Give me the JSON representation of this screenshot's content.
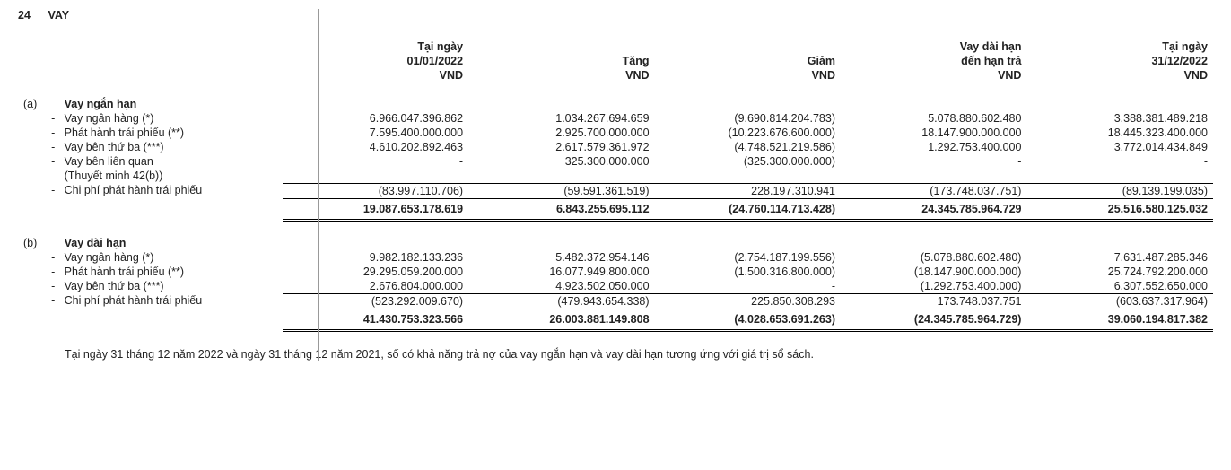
{
  "note_number": "24",
  "note_title": "VAY",
  "columns": {
    "c1_l1": "Tại ngày",
    "c1_l2": "01/01/2022",
    "c1_l3": "VND",
    "c2_l1": "Tăng",
    "c2_l2": "VND",
    "c3_l1": "Giảm",
    "c3_l2": "VND",
    "c4_l1": "Vay dài hạn",
    "c4_l2": "đến hạn trả",
    "c4_l3": "VND",
    "c5_l1": "Tại ngày",
    "c5_l2": "31/12/2022",
    "c5_l3": "VND"
  },
  "section_a": {
    "marker": "(a)",
    "title": "Vay ngắn hạn",
    "rows": [
      {
        "label": "Vay ngân hàng (*)",
        "c1": "6.966.047.396.862",
        "c2": "1.034.267.694.659",
        "c3": "(9.690.814.204.783)",
        "c4": "5.078.880.602.480",
        "c5": "3.388.381.489.218"
      },
      {
        "label": "Phát hành trái phiếu (**)",
        "c1": "7.595.400.000.000",
        "c2": "2.925.700.000.000",
        "c3": "(10.223.676.600.000)",
        "c4": "18.147.900.000.000",
        "c5": "18.445.323.400.000"
      },
      {
        "label": "Vay bên thứ ba (***)",
        "c1": "4.610.202.892.463",
        "c2": "2.617.579.361.972",
        "c3": "(4.748.521.219.586)",
        "c4": "1.292.753.400.000",
        "c5": "3.772.014.434.849"
      },
      {
        "label": "Vay bên liên quan",
        "label2": "(Thuyết minh 42(b))",
        "c1": "-",
        "c2": "325.300.000.000",
        "c3": "(325.300.000.000)",
        "c4": "-",
        "c5": "-"
      },
      {
        "label": "Chi phí phát hành trái phiếu",
        "c1": "(83.997.110.706)",
        "c2": "(59.591.361.519)",
        "c3": "228.197.310.941",
        "c4": "(173.748.037.751)",
        "c5": "(89.139.199.035)"
      }
    ],
    "subtotal": {
      "c1": "19.087.653.178.619",
      "c2": "6.843.255.695.112",
      "c3": "(24.760.114.713.428)",
      "c4": "24.345.785.964.729",
      "c5": "25.516.580.125.032"
    }
  },
  "section_b": {
    "marker": "(b)",
    "title": "Vay dài hạn",
    "rows": [
      {
        "label": "Vay ngân hàng (*)",
        "c1": "9.982.182.133.236",
        "c2": "5.482.372.954.146",
        "c3": "(2.754.187.199.556)",
        "c4": "(5.078.880.602.480)",
        "c5": "7.631.487.285.346"
      },
      {
        "label": "Phát hành trái phiếu (**)",
        "c1": "29.295.059.200.000",
        "c2": "16.077.949.800.000",
        "c3": "(1.500.316.800.000)",
        "c4": "(18.147.900.000.000)",
        "c5": "25.724.792.200.000"
      },
      {
        "label": "Vay bên thứ ba (***)",
        "c1": "2.676.804.000.000",
        "c2": "4.923.502.050.000",
        "c3": "-",
        "c4": "(1.292.753.400.000)",
        "c5": "6.307.552.650.000"
      },
      {
        "label": "Chi phí phát hành trái phiếu",
        "c1": "(523.292.009.670)",
        "c2": "(479.943.654.338)",
        "c3": "225.850.308.293",
        "c4": "173.748.037.751",
        "c5": "(603.637.317.964)"
      }
    ],
    "subtotal": {
      "c1": "41.430.753.323.566",
      "c2": "26.003.881.149.808",
      "c3": "(4.028.653.691.263)",
      "c4": "(24.345.785.964.729)",
      "c5": "39.060.194.817.382"
    }
  },
  "footnote": "Tại ngày 31 tháng 12 năm 2022 và ngày 31 tháng 12 năm 2021, số có khả năng trả nợ của vay ngắn hạn và vay dài hạn tương ứng với giá trị sổ sách."
}
